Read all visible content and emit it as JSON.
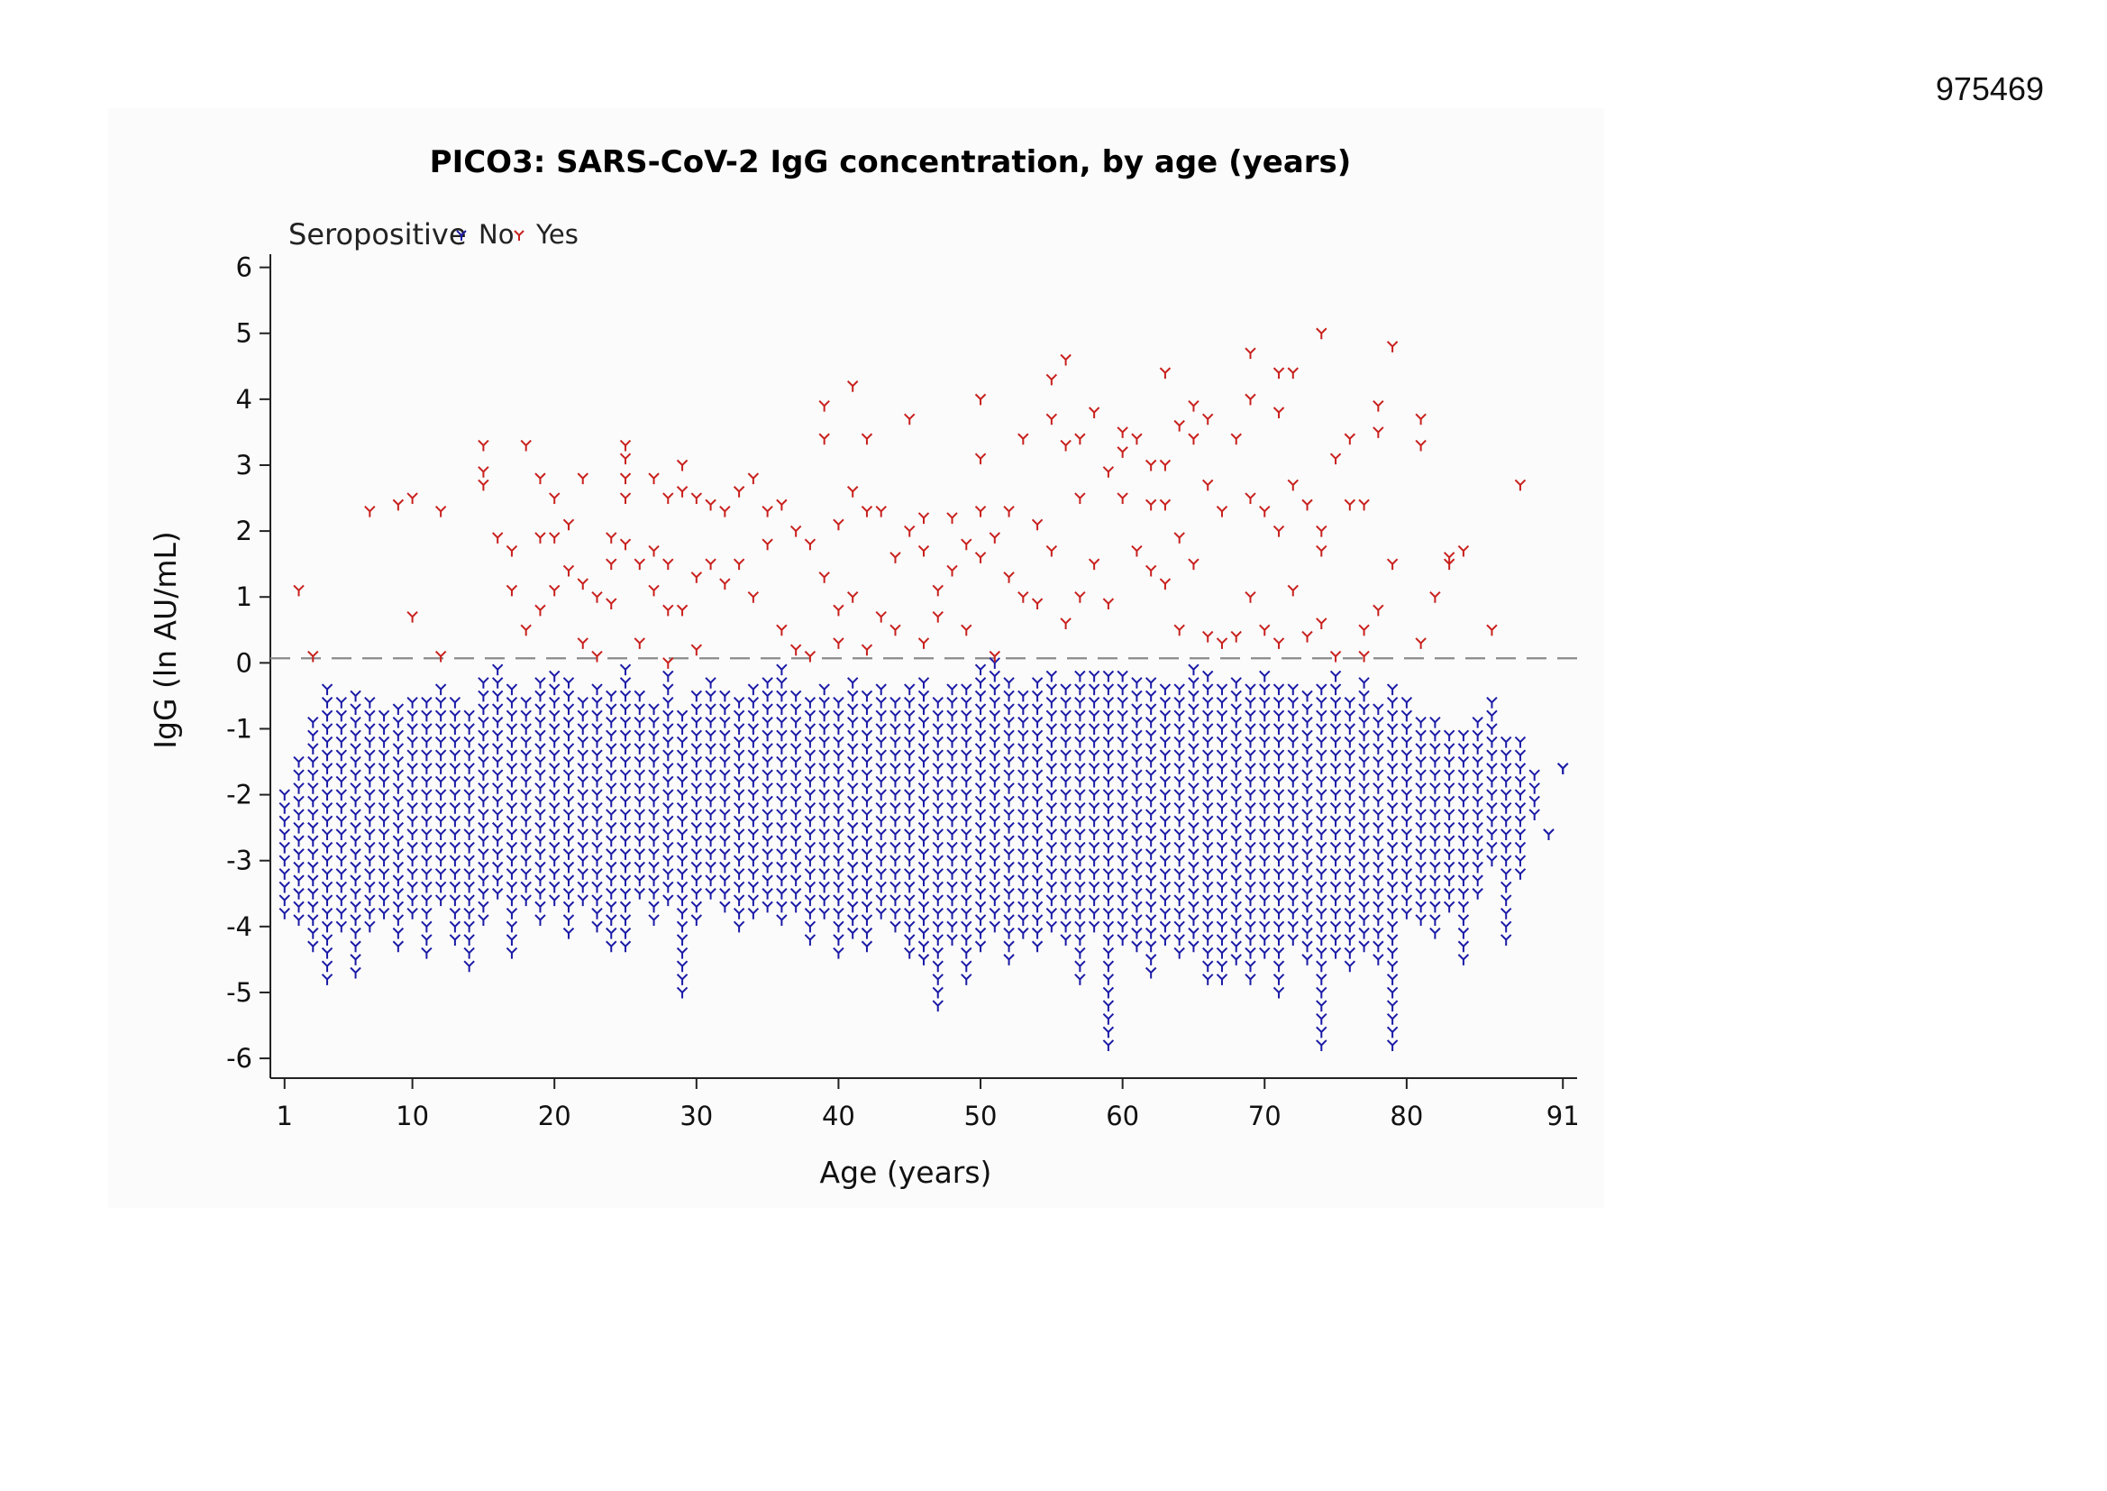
{
  "page": {
    "doc_id": "975469"
  },
  "chart_data": {
    "type": "scatter",
    "title": "PICO3: SARS-CoV-2 IgG concentration, by age (years)",
    "xlabel": "Age (years)",
    "ylabel": "IgG (ln AU/mL)",
    "xlim": [
      0,
      92
    ],
    "ylim": [
      -6.3,
      6.2
    ],
    "x_ticks": [
      1,
      10,
      20,
      30,
      40,
      50,
      60,
      70,
      80,
      91
    ],
    "y_ticks": [
      6,
      5,
      4,
      3,
      2,
      1,
      0,
      -1,
      -2,
      -3,
      -4,
      -5,
      -6
    ],
    "reference_line": {
      "y": 0.07,
      "style": "dashed",
      "color": "#8a8a8a"
    },
    "legend": {
      "title": "Seropositive",
      "placement": "top-left",
      "items": [
        {
          "label": "No",
          "color": "#1a1aa6"
        },
        {
          "label": "Yes",
          "color": "#c8201d"
        }
      ]
    },
    "marker": "Y",
    "series": [
      {
        "name": "No",
        "color": "#1a1aa6",
        "columns": [
          [
            1,
            -3.8,
            -2.0
          ],
          [
            2,
            -3.9,
            -1.5
          ],
          [
            3,
            -4.3,
            -0.9
          ],
          [
            4,
            -4.8,
            -0.4
          ],
          [
            5,
            -4.0,
            -0.6
          ],
          [
            6,
            -4.7,
            -0.4
          ],
          [
            7,
            -4.0,
            -0.5
          ],
          [
            8,
            -3.8,
            -0.8
          ],
          [
            9,
            -4.3,
            -0.7
          ],
          [
            10,
            -3.8,
            -0.5
          ],
          [
            11,
            -4.4,
            -0.6
          ],
          [
            12,
            -3.6,
            -0.3
          ],
          [
            13,
            -4.2,
            -0.5
          ],
          [
            14,
            -4.6,
            -0.8
          ],
          [
            15,
            -3.9,
            -0.2
          ],
          [
            16,
            -3.5,
            -0.1
          ],
          [
            17,
            -4.4,
            -0.3
          ],
          [
            18,
            -3.6,
            -0.6
          ],
          [
            19,
            -3.9,
            -0.2
          ],
          [
            20,
            -3.6,
            -0.2
          ],
          [
            21,
            -4.1,
            -0.3
          ],
          [
            22,
            -3.6,
            -0.5
          ],
          [
            23,
            -4.0,
            -0.3
          ],
          [
            24,
            -4.3,
            -0.4
          ],
          [
            25,
            -4.3,
            -0.1
          ],
          [
            26,
            -3.5,
            -0.5
          ],
          [
            27,
            -3.9,
            -0.6
          ],
          [
            28,
            -3.6,
            -0.2
          ],
          [
            29,
            -5.0,
            -0.7
          ],
          [
            30,
            -3.9,
            -0.4
          ],
          [
            31,
            -3.5,
            -0.3
          ],
          [
            32,
            -3.7,
            -0.5
          ],
          [
            33,
            -4.0,
            -0.6
          ],
          [
            34,
            -3.8,
            -0.4
          ],
          [
            35,
            -3.7,
            -0.2
          ],
          [
            36,
            -3.9,
            -0.1
          ],
          [
            37,
            -3.7,
            -0.4
          ],
          [
            38,
            -4.2,
            -0.5
          ],
          [
            39,
            -3.8,
            -0.3
          ],
          [
            40,
            -4.4,
            -0.6
          ],
          [
            41,
            -4.1,
            -0.2
          ],
          [
            42,
            -4.3,
            -0.5
          ],
          [
            43,
            -3.8,
            -0.3
          ],
          [
            44,
            -4.0,
            -0.5
          ],
          [
            45,
            -4.4,
            -0.3
          ],
          [
            46,
            -4.5,
            -0.2
          ],
          [
            47,
            -5.2,
            -0.6
          ],
          [
            48,
            -4.2,
            -0.4
          ],
          [
            49,
            -4.8,
            -0.3
          ],
          [
            50,
            -4.3,
            -0.1
          ],
          [
            51,
            -4.0,
            0.0
          ],
          [
            52,
            -4.5,
            -0.2
          ],
          [
            53,
            -4.1,
            -0.4
          ],
          [
            54,
            -4.3,
            -0.3
          ],
          [
            55,
            -4.0,
            -0.2
          ],
          [
            56,
            -4.2,
            -0.3
          ],
          [
            57,
            -4.8,
            -0.1
          ],
          [
            58,
            -4.0,
            -0.2
          ],
          [
            59,
            -5.8,
            -0.1
          ],
          [
            60,
            -4.2,
            -0.2
          ],
          [
            61,
            -4.3,
            -0.3
          ],
          [
            62,
            -4.7,
            -0.2
          ],
          [
            63,
            -4.2,
            -0.4
          ],
          [
            64,
            -4.4,
            -0.3
          ],
          [
            65,
            -4.3,
            -0.1
          ],
          [
            66,
            -4.8,
            -0.2
          ],
          [
            67,
            -4.8,
            -0.4
          ],
          [
            68,
            -4.5,
            -0.2
          ],
          [
            69,
            -4.8,
            -0.3
          ],
          [
            70,
            -4.4,
            -0.1
          ],
          [
            71,
            -5.0,
            -0.3
          ],
          [
            72,
            -4.2,
            -0.4
          ],
          [
            73,
            -4.5,
            -0.5
          ],
          [
            74,
            -5.8,
            -0.3
          ],
          [
            75,
            -4.4,
            -0.2
          ],
          [
            76,
            -4.6,
            -0.5
          ],
          [
            77,
            -4.3,
            -0.2
          ],
          [
            78,
            -4.5,
            -0.6
          ],
          [
            79,
            -5.8,
            -0.3
          ],
          [
            80,
            -3.8,
            -0.5
          ],
          [
            81,
            -3.9,
            -0.8
          ],
          [
            82,
            -4.1,
            -0.8
          ],
          [
            83,
            -3.7,
            -1.0
          ],
          [
            84,
            -4.5,
            -1.1
          ],
          [
            85,
            -3.5,
            -0.8
          ],
          [
            86,
            -3.0,
            -0.6
          ],
          [
            87,
            -4.2,
            -1.2
          ],
          [
            88,
            -3.2,
            -1.1
          ],
          [
            89,
            -2.3,
            -1.6
          ],
          [
            90,
            -2.6,
            -2.6
          ],
          [
            91,
            -1.6,
            -1.6
          ]
        ]
      },
      {
        "name": "Yes",
        "color": "#c8201d",
        "points": [
          [
            2,
            1.1
          ],
          [
            3,
            0.1
          ],
          [
            7,
            2.3
          ],
          [
            9,
            2.4
          ],
          [
            10,
            2.5
          ],
          [
            10,
            0.7
          ],
          [
            12,
            2.3
          ],
          [
            12,
            0.1
          ],
          [
            15,
            3.3
          ],
          [
            15,
            2.9
          ],
          [
            15,
            2.7
          ],
          [
            16,
            1.9
          ],
          [
            17,
            1.7
          ],
          [
            17,
            1.1
          ],
          [
            18,
            3.3
          ],
          [
            18,
            0.5
          ],
          [
            19,
            2.8
          ],
          [
            19,
            1.9
          ],
          [
            19,
            0.8
          ],
          [
            20,
            2.5
          ],
          [
            20,
            1.9
          ],
          [
            20,
            1.1
          ],
          [
            21,
            2.1
          ],
          [
            21,
            1.4
          ],
          [
            22,
            2.8
          ],
          [
            22,
            1.2
          ],
          [
            22,
            0.3
          ],
          [
            23,
            1.0
          ],
          [
            23,
            0.1
          ],
          [
            24,
            1.9
          ],
          [
            24,
            1.5
          ],
          [
            24,
            0.9
          ],
          [
            25,
            3.3
          ],
          [
            25,
            3.1
          ],
          [
            25,
            2.8
          ],
          [
            25,
            2.5
          ],
          [
            25,
            1.8
          ],
          [
            26,
            1.5
          ],
          [
            26,
            0.3
          ],
          [
            27,
            2.8
          ],
          [
            27,
            1.7
          ],
          [
            27,
            1.1
          ],
          [
            28,
            2.5
          ],
          [
            28,
            1.5
          ],
          [
            28,
            0.8
          ],
          [
            28,
            0.0
          ],
          [
            29,
            3.0
          ],
          [
            29,
            2.6
          ],
          [
            29,
            0.8
          ],
          [
            30,
            2.5
          ],
          [
            30,
            1.3
          ],
          [
            30,
            0.2
          ],
          [
            31,
            2.4
          ],
          [
            31,
            1.5
          ],
          [
            32,
            2.3
          ],
          [
            32,
            1.2
          ],
          [
            33,
            2.6
          ],
          [
            33,
            1.5
          ],
          [
            34,
            2.8
          ],
          [
            34,
            1.0
          ],
          [
            35,
            2.3
          ],
          [
            35,
            1.8
          ],
          [
            36,
            2.4
          ],
          [
            36,
            0.5
          ],
          [
            37,
            2.0
          ],
          [
            37,
            0.2
          ],
          [
            38,
            1.8
          ],
          [
            38,
            0.1
          ],
          [
            39,
            3.9
          ],
          [
            39,
            3.4
          ],
          [
            39,
            1.3
          ],
          [
            40,
            2.1
          ],
          [
            40,
            0.8
          ],
          [
            40,
            0.3
          ],
          [
            41,
            4.2
          ],
          [
            41,
            2.6
          ],
          [
            41,
            1.0
          ],
          [
            42,
            3.4
          ],
          [
            42,
            2.3
          ],
          [
            42,
            0.2
          ],
          [
            43,
            2.3
          ],
          [
            43,
            0.7
          ],
          [
            44,
            1.6
          ],
          [
            44,
            0.5
          ],
          [
            45,
            3.7
          ],
          [
            45,
            2.0
          ],
          [
            46,
            2.2
          ],
          [
            46,
            1.7
          ],
          [
            46,
            0.3
          ],
          [
            47,
            1.1
          ],
          [
            47,
            0.7
          ],
          [
            48,
            2.2
          ],
          [
            48,
            1.4
          ],
          [
            49,
            1.8
          ],
          [
            49,
            0.5
          ],
          [
            50,
            4.0
          ],
          [
            50,
            3.1
          ],
          [
            50,
            2.3
          ],
          [
            50,
            1.6
          ],
          [
            51,
            1.9
          ],
          [
            51,
            0.1
          ],
          [
            52,
            2.3
          ],
          [
            52,
            1.3
          ],
          [
            53,
            1.0
          ],
          [
            53,
            3.4
          ],
          [
            54,
            2.1
          ],
          [
            54,
            0.9
          ],
          [
            55,
            4.3
          ],
          [
            55,
            3.7
          ],
          [
            55,
            1.7
          ],
          [
            56,
            4.6
          ],
          [
            56,
            3.3
          ],
          [
            56,
            0.6
          ],
          [
            57,
            3.4
          ],
          [
            57,
            2.5
          ],
          [
            57,
            1.0
          ],
          [
            58,
            3.8
          ],
          [
            58,
            1.5
          ],
          [
            59,
            2.9
          ],
          [
            59,
            0.9
          ],
          [
            60,
            3.5
          ],
          [
            60,
            3.2
          ],
          [
            60,
            2.5
          ],
          [
            61,
            3.4
          ],
          [
            61,
            1.7
          ],
          [
            62,
            3.0
          ],
          [
            62,
            2.4
          ],
          [
            62,
            1.4
          ],
          [
            63,
            4.4
          ],
          [
            63,
            3.0
          ],
          [
            63,
            2.4
          ],
          [
            63,
            1.2
          ],
          [
            64,
            3.6
          ],
          [
            64,
            1.9
          ],
          [
            64,
            0.5
          ],
          [
            65,
            3.9
          ],
          [
            65,
            3.4
          ],
          [
            65,
            1.5
          ],
          [
            66,
            3.7
          ],
          [
            66,
            2.7
          ],
          [
            66,
            0.4
          ],
          [
            67,
            2.3
          ],
          [
            67,
            0.3
          ],
          [
            68,
            3.4
          ],
          [
            68,
            0.4
          ],
          [
            69,
            4.7
          ],
          [
            69,
            4.0
          ],
          [
            69,
            2.5
          ],
          [
            69,
            1.0
          ],
          [
            70,
            2.3
          ],
          [
            70,
            0.5
          ],
          [
            71,
            4.4
          ],
          [
            71,
            3.8
          ],
          [
            71,
            2.0
          ],
          [
            71,
            0.3
          ],
          [
            72,
            4.4
          ],
          [
            72,
            2.7
          ],
          [
            72,
            1.1
          ],
          [
            73,
            2.4
          ],
          [
            73,
            0.4
          ],
          [
            74,
            5.0
          ],
          [
            74,
            2.0
          ],
          [
            74,
            1.7
          ],
          [
            74,
            0.6
          ],
          [
            75,
            3.1
          ],
          [
            75,
            0.1
          ],
          [
            76,
            3.4
          ],
          [
            76,
            2.4
          ],
          [
            77,
            2.4
          ],
          [
            77,
            0.5
          ],
          [
            77,
            0.1
          ],
          [
            78,
            3.9
          ],
          [
            78,
            3.5
          ],
          [
            78,
            0.8
          ],
          [
            79,
            4.8
          ],
          [
            79,
            1.5
          ],
          [
            81,
            3.7
          ],
          [
            81,
            3.3
          ],
          [
            81,
            0.3
          ],
          [
            82,
            1.0
          ],
          [
            83,
            1.5
          ],
          [
            83,
            1.6
          ],
          [
            84,
            1.7
          ],
          [
            86,
            0.5
          ],
          [
            88,
            2.7
          ]
        ]
      }
    ]
  }
}
